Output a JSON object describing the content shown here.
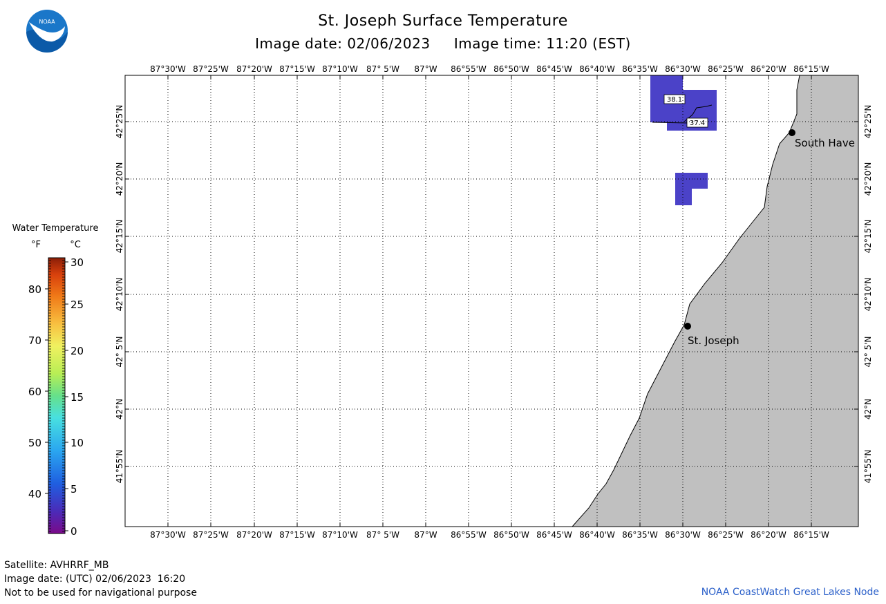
{
  "header": {
    "title": "St. Joseph Surface Temperature",
    "image_date": "Image date: 02/06/2023",
    "image_time": "Image time: 11:20 (EST)"
  },
  "logo": {
    "text": "NOAA",
    "icon": "noaa-logo-icon"
  },
  "map": {
    "lon_labels": [
      "87°30'W",
      "87°25'W",
      "87°20'W",
      "87°15'W",
      "87°10'W",
      "87° 5'W",
      "87°W",
      "86°55'W",
      "86°50'W",
      "86°45'W",
      "86°40'W",
      "86°35'W",
      "86°30'W",
      "86°25'W",
      "86°20'W",
      "86°15'W"
    ],
    "lat_labels": [
      "42°25'N",
      "42°20'N",
      "42°15'N",
      "42°10'N",
      "42° 5'N",
      "42°N",
      "41°55'N"
    ],
    "land_color": "#c0c0c0",
    "water_color": "#ffffff",
    "cities": [
      {
        "name": "South Have"
      },
      {
        "name": "St. Joseph"
      }
    ],
    "contour_labels": [
      "38.1",
      "37.4"
    ],
    "sst_patch_color": "#4b42c8"
  },
  "legend": {
    "title": "Water Temperature",
    "unit_f": "°F",
    "unit_c": "°C",
    "f_ticks": [
      "80",
      "70",
      "60",
      "50",
      "40"
    ],
    "c_ticks": [
      "30",
      "25",
      "20",
      "15",
      "10",
      "5",
      "0"
    ]
  },
  "footer": {
    "satellite": "Satellite: AVHRRF_MB",
    "utc_date": "Image date: (UTC) 02/06/2023  16:20",
    "disclaimer": "Not to be used for navigational purpose",
    "credit": "NOAA CoastWatch Great Lakes Node",
    "credit_color": "#2a5fc9"
  }
}
